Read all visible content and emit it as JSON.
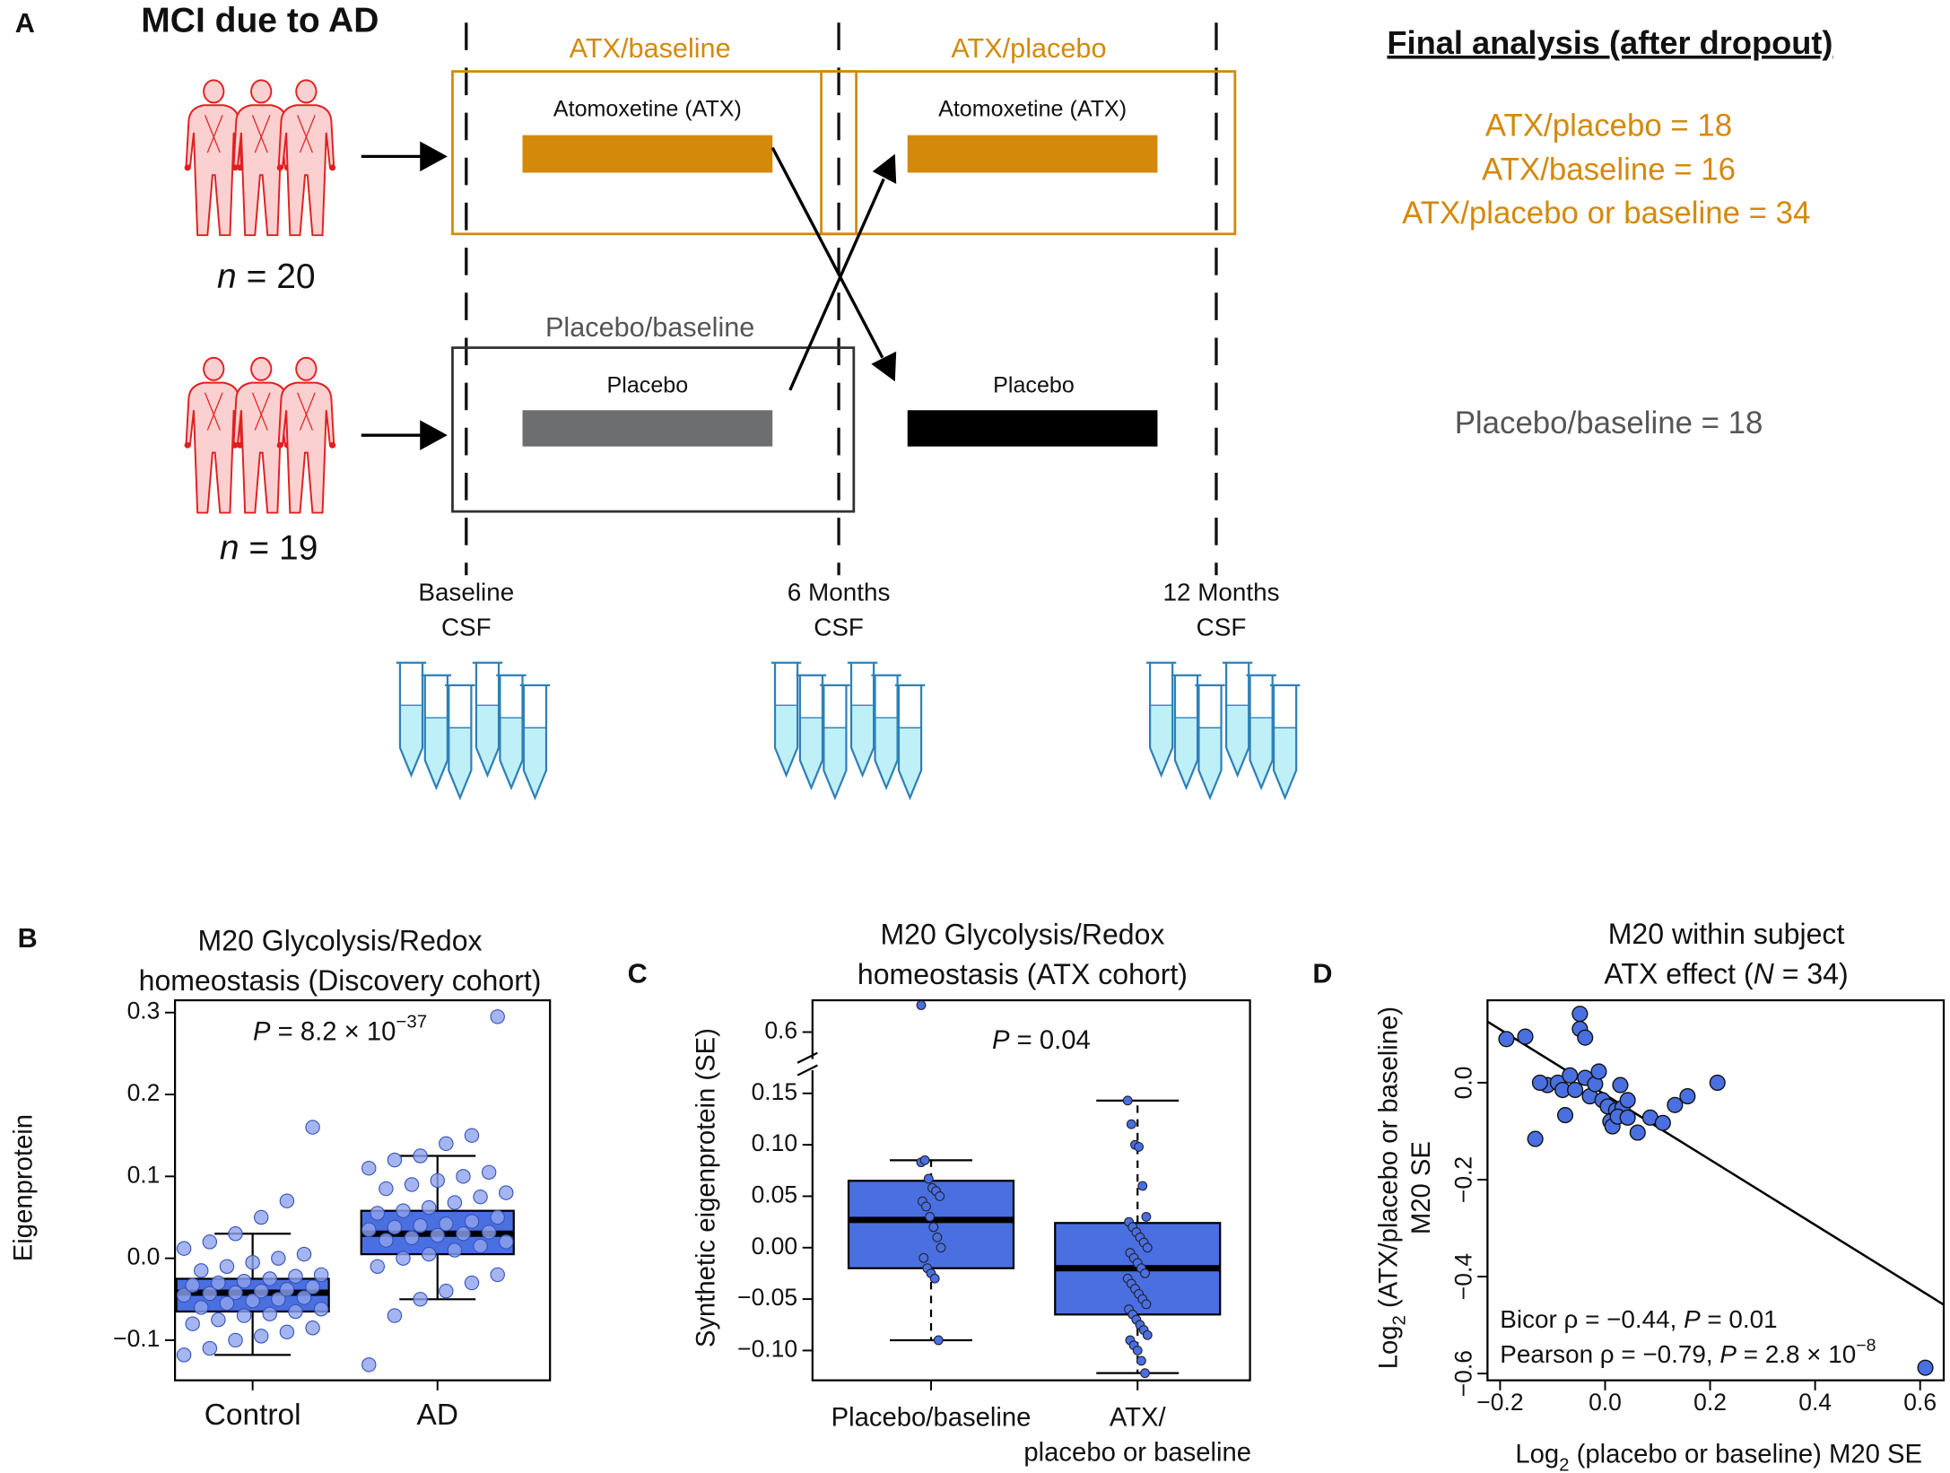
{
  "diagram": {
    "panel_label": "A",
    "title": "MCI due to AD",
    "groups": [
      {
        "n": [
          {
            "text": "n",
            "style": "i"
          },
          " = 20"
        ]
      },
      {
        "n": [
          {
            "text": "n",
            "style": "i"
          },
          " = 19"
        ]
      }
    ],
    "boxes": [
      "ATX/baseline",
      "ATX/placebo",
      "Placebo/baseline"
    ],
    "treatments": [
      "Atomoxetine (ATX)",
      "Atomoxetine (ATX)",
      "Placebo",
      "Placebo"
    ],
    "timepoints": [
      [
        "Baseline",
        "CSF"
      ],
      [
        "6 Months",
        "CSF"
      ],
      [
        "12 Months",
        "CSF"
      ]
    ],
    "final_analysis": {
      "title": "Final analysis (after dropout)",
      "lines": [
        "ATX/placebo = 18",
        "ATX/baseline = 16",
        "ATX/placebo or baseline = 34",
        "Placebo/baseline = 18"
      ]
    }
  },
  "chart_data": [
    {
      "type": "box",
      "panel_label": "B",
      "title": [
        "M20 Glycolysis/Redox",
        "homeostasis (Discovery cohort)"
      ],
      "y_label": "Eigenprotein",
      "annotation": [
        {
          "text": "P",
          "style": "i"
        },
        " = 8.2 × 10",
        {
          "text": "−37",
          "style": "sup"
        }
      ],
      "categories": [
        [
          "Control"
        ],
        [
          "AD"
        ]
      ],
      "color": "#4a6fe0",
      "point_color": "#8ea3ee",
      "ylim": [
        -0.149,
        0.315
      ],
      "yticks": [
        {
          "value": -0.1,
          "label": "−0.1"
        },
        {
          "value": 0,
          "label": "0.0"
        },
        0.1,
        0.2,
        0.3
      ],
      "boxes": [
        {
          "q1": -0.065,
          "median": -0.042,
          "q3": -0.025,
          "whisker_low": -0.118,
          "whisker_high": 0.03,
          "points": [
            -0.118,
            -0.11,
            -0.1,
            -0.095,
            -0.09,
            -0.085,
            -0.08,
            -0.075,
            -0.07,
            -0.068,
            -0.065,
            -0.062,
            -0.06,
            -0.055,
            -0.052,
            -0.05,
            -0.048,
            -0.045,
            -0.043,
            -0.042,
            -0.04,
            -0.038,
            -0.035,
            -0.033,
            -0.03,
            -0.028,
            -0.025,
            -0.022,
            -0.02,
            -0.015,
            -0.01,
            -0.005,
            0,
            0.005,
            0.012,
            0.02,
            0.03,
            0.05,
            0.07,
            0.16
          ]
        },
        {
          "q1": 0.005,
          "median": 0.03,
          "q3": 0.058,
          "whisker_low": -0.05,
          "whisker_high": 0.125,
          "points": [
            -0.13,
            -0.07,
            -0.05,
            -0.04,
            -0.03,
            -0.02,
            -0.01,
            0,
            0.005,
            0.01,
            0.015,
            0.02,
            0.022,
            0.025,
            0.028,
            0.03,
            0.032,
            0.035,
            0.038,
            0.04,
            0.042,
            0.045,
            0.05,
            0.055,
            0.058,
            0.062,
            0.068,
            0.075,
            0.08,
            0.085,
            0.09,
            0.095,
            0.1,
            0.105,
            0.11,
            0.12,
            0.125,
            0.14,
            0.15,
            0.295
          ]
        }
      ]
    },
    {
      "type": "box",
      "panel_label": "C",
      "title": [
        "M20 Glycolysis/Redox",
        "homeostasis (ATX cohort)"
      ],
      "y_label": "Synthetic eigenprotein (SE)",
      "annotation": [
        {
          "text": "P",
          "style": "i"
        },
        " = 0.04"
      ],
      "categories": [
        [
          "Placebo/baseline"
        ],
        [
          "ATX/",
          "placebo or baseline"
        ]
      ],
      "color": "#4a6fe0",
      "point_color": "#4a6fe0",
      "ylim": [
        -0.129,
        0.17
      ],
      "yticks": [
        {
          "value": -0.1,
          "label": "−0.10"
        },
        {
          "value": -0.05,
          "label": "−0.05"
        },
        {
          "value": 0,
          "label": "0.00"
        },
        0.05,
        {
          "value": 0.1,
          "label": "0.10"
        },
        0.15
      ],
      "break": {
        "ylim": [
          0.5,
          0.73
        ],
        "yticks": [
          0.6
        ]
      },
      "boxes": [
        {
          "q1": -0.02,
          "median": 0.027,
          "q3": 0.065,
          "whisker_low": -0.09,
          "whisker_high": 0.085,
          "points": [
            0.083,
            0.085,
            0.067,
            0.058,
            0.055,
            0.05,
            0.045,
            0.04,
            0.03,
            0.02,
            0.01,
            0,
            -0.01,
            -0.02,
            -0.025,
            -0.03,
            -0.09,
            0.71
          ]
        },
        {
          "q1": -0.065,
          "median": -0.02,
          "q3": 0.024,
          "whisker_low": -0.122,
          "whisker_high": 0.143,
          "points": [
            0.143,
            0.12,
            0.1,
            0.098,
            0.06,
            0.03,
            0.025,
            0.02,
            0.015,
            0.01,
            0.005,
            0,
            -0.005,
            -0.01,
            -0.015,
            -0.02,
            -0.025,
            -0.03,
            -0.035,
            -0.04,
            -0.045,
            -0.05,
            -0.055,
            -0.06,
            -0.065,
            -0.07,
            -0.075,
            -0.08,
            -0.085,
            -0.09,
            -0.095,
            -0.1,
            -0.11,
            -0.122
          ]
        }
      ]
    },
    {
      "type": "scatter",
      "panel_label": "D",
      "title": [
        [
          "M20 within subject"
        ],
        [
          "ATX effect (",
          {
            "text": "N",
            "style": "i"
          },
          " = 34)"
        ]
      ],
      "x_label": [
        "Log",
        {
          "text": "2",
          "style": "sub"
        },
        " (placebo or baseline) M20 SE"
      ],
      "y_label": [
        [
          "Log",
          {
            "text": "2",
            "style": "sub"
          },
          " (ATX/placebo or baseline)"
        ],
        [
          "M20 SE"
        ]
      ],
      "annotations": [
        [
          "Bicor ρ = −0.44, ",
          {
            "text": "P",
            "style": "i"
          },
          " = 0.01"
        ],
        [
          "Pearson ρ = −0.79, ",
          {
            "text": "P",
            "style": "i"
          },
          " = 2.8 × 10",
          {
            "text": "−8",
            "style": "sup"
          }
        ]
      ],
      "color": "#4a6fe0",
      "xlim": [
        -0.224,
        0.645
      ],
      "ylim": [
        -0.614,
        0.17
      ],
      "xticks": [
        {
          "value": -0.2,
          "label": "−0.2"
        },
        {
          "value": 0,
          "label": "0.0"
        },
        0.2,
        0.4,
        0.6
      ],
      "yticks": [
        {
          "value": -0.6,
          "label": "−0.6"
        },
        {
          "value": -0.4,
          "label": "−0.4"
        },
        {
          "value": -0.2,
          "label": "−0.2"
        },
        {
          "value": 0,
          "label": "0.0"
        }
      ],
      "x": [
        -0.188,
        -0.152,
        -0.133,
        -0.11,
        -0.09,
        -0.081,
        -0.076,
        -0.067,
        -0.057,
        -0.048,
        -0.048,
        -0.038,
        -0.038,
        -0.029,
        -0.019,
        -0.012,
        -0.005,
        0.005,
        0.01,
        0.014,
        0.021,
        0.029,
        0.033,
        0.043,
        0.062,
        0.086,
        0.11,
        0.133,
        0.157,
        0.214,
        0.61,
        -0.124,
        0.024,
        0.043
      ],
      "y": [
        0.09,
        0.095,
        -0.116,
        -0.005,
        0,
        -0.015,
        -0.067,
        0.015,
        -0.015,
        0.142,
        0.111,
        0.093,
        0.01,
        -0.028,
        -0.003,
        0.023,
        -0.036,
        -0.049,
        -0.08,
        -0.09,
        -0.057,
        -0.005,
        -0.052,
        -0.036,
        -0.103,
        -0.072,
        -0.083,
        -0.046,
        -0.028,
        0,
        -0.588,
        0,
        -0.07,
        -0.072
      ],
      "fit_line": {
        "x": [
          -0.224,
          0.645
        ],
        "y": [
          0.126,
          -0.458
        ]
      }
    }
  ]
}
